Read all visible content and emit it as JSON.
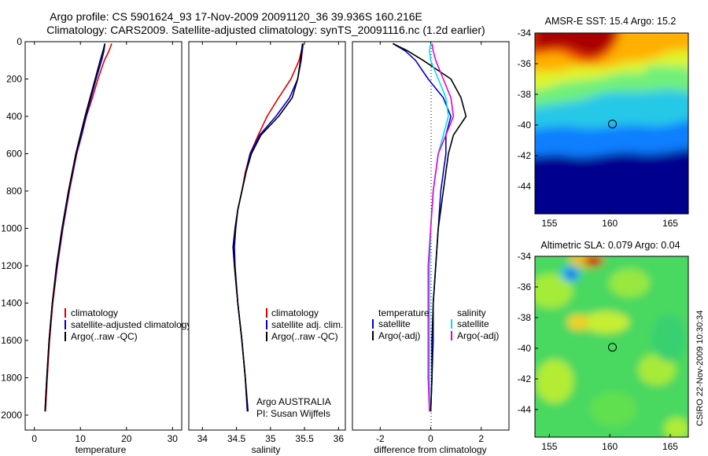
{
  "title": {
    "line1": "Argo profile: CS 5901624_93 17-Nov-2009 20091120_36 39.936S 160.216E",
    "line2": "Climatology: CARS2009. Satellite-adjusted climatology: synTS_20091116.nc (1.2d earlier)"
  },
  "colors": {
    "climatology": "#e00000",
    "satellite": "#0000d0",
    "argo": "#000000",
    "temp_diff_satellite": "#0000d0",
    "sal_diff_satellite": "#00e0e0",
    "sal_diff_argo": "#e000e0"
  },
  "chart_data": [
    {
      "type": "line",
      "name": "temperature-profile",
      "xlabel": "temperature",
      "ylabel": "",
      "xlim": [
        -2,
        32
      ],
      "ylim": [
        2080,
        0
      ],
      "xticks": [
        0,
        10,
        20,
        30
      ],
      "yticks": [
        0,
        200,
        400,
        600,
        800,
        1000,
        1200,
        1400,
        1600,
        1800,
        2000
      ],
      "legend": [
        "climatology",
        "satellite-adjusted climatology",
        "Argo(..raw -QC)"
      ],
      "series": [
        {
          "name": "climatology",
          "color": "#e00000",
          "depth": [
            10,
            50,
            100,
            200,
            300,
            400,
            500,
            600,
            800,
            1000,
            1200,
            1400,
            1600,
            1800,
            1980
          ],
          "values": [
            16.8,
            16.2,
            15.2,
            13.8,
            12.6,
            11.3,
            10.3,
            9.2,
            7.6,
            6.2,
            5.0,
            4.0,
            3.3,
            2.8,
            2.4
          ]
        },
        {
          "name": "satellite-adjusted climatology",
          "color": "#0000d0",
          "depth": [
            10,
            50,
            100,
            200,
            300,
            400,
            500,
            600,
            800,
            1000,
            1200,
            1400,
            1600,
            1800,
            1980
          ],
          "values": [
            15.3,
            15.1,
            14.6,
            13.4,
            12.3,
            11.2,
            10.2,
            9.1,
            7.5,
            6.1,
            4.9,
            3.9,
            3.2,
            2.7,
            2.3
          ]
        },
        {
          "name": "Argo(..raw -QC)",
          "color": "#000000",
          "depth": [
            10,
            50,
            100,
            200,
            300,
            400,
            500,
            600,
            800,
            1000,
            1200,
            1400,
            1600,
            1800,
            1980
          ],
          "values": [
            15.3,
            14.9,
            14.3,
            13.2,
            12.1,
            11.0,
            10.0,
            9.0,
            7.4,
            6.0,
            4.8,
            3.9,
            3.2,
            2.7,
            2.3
          ]
        }
      ]
    },
    {
      "type": "line",
      "name": "salinity-profile",
      "xlabel": "salinity",
      "xlim": [
        33.8,
        36.1
      ],
      "ylim": [
        2080,
        0
      ],
      "xticks": [
        34,
        34.5,
        35,
        35.5,
        36
      ],
      "xticklabels": [
        "34",
        "34.5",
        "35",
        "35.5",
        "36"
      ],
      "legend": [
        "climatology",
        "satellite adj. clim.",
        "Argo(..raw -QC)"
      ],
      "annotation": [
        "Argo AUSTRALIA",
        "PI: Susan Wijffels"
      ],
      "series": [
        {
          "name": "climatology",
          "color": "#e00000",
          "depth": [
            10,
            100,
            200,
            300,
            400,
            500,
            600,
            700,
            800,
            900,
            1000,
            1100,
            1200,
            1400,
            1600,
            1800,
            1980
          ],
          "values": [
            35.48,
            35.42,
            35.3,
            35.12,
            34.95,
            34.82,
            34.7,
            34.63,
            34.58,
            34.52,
            34.48,
            34.46,
            34.47,
            34.52,
            34.58,
            34.63,
            34.66
          ]
        },
        {
          "name": "satellite adj. clim.",
          "color": "#0000d0",
          "depth": [
            10,
            100,
            200,
            300,
            400,
            500,
            600,
            700,
            800,
            900,
            1000,
            1100,
            1200,
            1400,
            1600,
            1800,
            1980
          ],
          "values": [
            35.48,
            35.45,
            35.4,
            35.28,
            35.08,
            34.84,
            34.7,
            34.64,
            34.58,
            34.52,
            34.49,
            34.47,
            34.48,
            34.52,
            34.58,
            34.63,
            34.66
          ]
        },
        {
          "name": "Argo(..raw -QC)",
          "color": "#000000",
          "depth": [
            10,
            100,
            200,
            300,
            400,
            500,
            600,
            700,
            800,
            900,
            1000,
            1100,
            1200,
            1400,
            1600,
            1800,
            1980
          ],
          "values": [
            35.47,
            35.44,
            35.4,
            35.32,
            35.12,
            34.86,
            34.72,
            34.64,
            34.58,
            34.52,
            34.48,
            34.45,
            34.47,
            34.52,
            34.58,
            34.63,
            34.67
          ]
        }
      ]
    },
    {
      "type": "line",
      "name": "difference-profile",
      "xlabel": "difference from climatology",
      "xlim": [
        -3.1,
        3.1
      ],
      "ylim": [
        2080,
        0
      ],
      "xticks": [
        -2,
        0,
        2
      ],
      "legend_titles": [
        "temperature",
        "salinity"
      ],
      "legend_left": [
        "satellite",
        "Argo(-adj)"
      ],
      "legend_right": [
        "satellite",
        "Argo(-adj)"
      ],
      "series": [
        {
          "name": "temperature satellite",
          "color": "#0000d0",
          "depth": [
            10,
            50,
            100,
            200,
            300,
            400,
            500,
            600,
            800,
            1000,
            1200,
            1400,
            1600,
            1800,
            1980
          ],
          "values": [
            -1.5,
            -1.0,
            -0.6,
            -0.1,
            0.5,
            0.8,
            0.6,
            0.6,
            0.4,
            0.3,
            0.2,
            0.1,
            0.1,
            0.05,
            0.0
          ]
        },
        {
          "name": "temperature Argo(-adj)",
          "color": "#000000",
          "depth": [
            10,
            50,
            100,
            200,
            300,
            400,
            500,
            600,
            800,
            1000,
            1200,
            1400,
            1600,
            1800,
            1980
          ],
          "values": [
            -1.5,
            -0.9,
            -0.3,
            0.8,
            1.2,
            1.4,
            0.9,
            0.7,
            0.5,
            0.3,
            0.2,
            0.1,
            0.05,
            0.05,
            0.0
          ]
        },
        {
          "name": "salinity satellite",
          "color": "#00e0e0",
          "depth": [
            10,
            50,
            100,
            200,
            300,
            400,
            500,
            600,
            800,
            1000,
            1200,
            1400,
            1600,
            1800,
            1980
          ],
          "values": [
            0.0,
            -0.05,
            0.0,
            0.3,
            0.6,
            0.7,
            0.5,
            0.3,
            0.1,
            0.0,
            -0.05,
            -0.05,
            -0.05,
            -0.05,
            -0.05
          ]
        },
        {
          "name": "salinity Argo(-adj)",
          "color": "#e000e0",
          "depth": [
            10,
            50,
            100,
            200,
            300,
            400,
            500,
            600,
            800,
            1000,
            1200,
            1400,
            1600,
            1800,
            1980
          ],
          "values": [
            0.05,
            0.1,
            0.2,
            0.5,
            0.8,
            0.9,
            0.6,
            0.3,
            0.1,
            0.0,
            -0.1,
            -0.1,
            -0.1,
            -0.1,
            -0.05
          ]
        }
      ]
    },
    {
      "type": "heatmap",
      "name": "sst-map",
      "title": "AMSR-E SST: 15.4 Argo: 15.2",
      "xlim": [
        153.8,
        166.5
      ],
      "ylim": [
        -45.8,
        -34
      ],
      "xticks": [
        155,
        160,
        165
      ],
      "yticks": [
        -34,
        -36,
        -38,
        -40,
        -42,
        -44
      ],
      "marker": {
        "lon": 160.216,
        "lat": -39.936
      }
    },
    {
      "type": "heatmap",
      "name": "sla-map",
      "title": "Altimetric SLA: 0.079 Argo: 0.04",
      "xlim": [
        153.8,
        166.5
      ],
      "ylim": [
        -45.8,
        -34
      ],
      "xticks": [
        155,
        160,
        165
      ],
      "yticks": [
        -34,
        -36,
        -38,
        -40,
        -42,
        -44
      ],
      "marker": {
        "lon": 160.216,
        "lat": -39.936
      }
    }
  ],
  "side_label": "CSIRO 22-Nov-2009 10:30:34"
}
